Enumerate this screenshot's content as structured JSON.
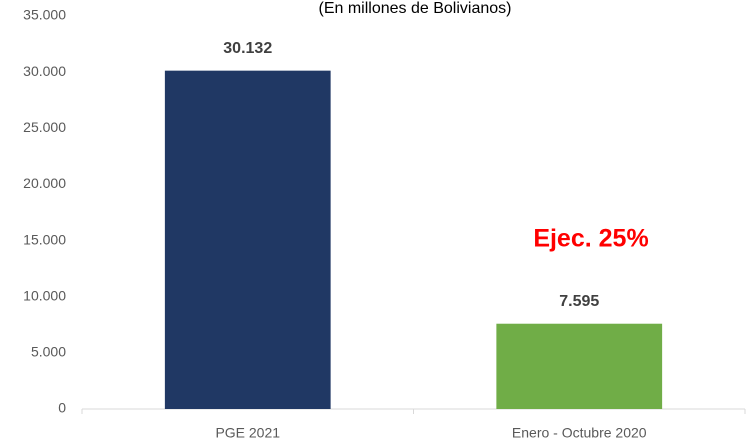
{
  "chart_data": {
    "type": "bar",
    "subtitle": "(En millones de Bolivianos)",
    "categories": [
      "PGE 2021",
      "Enero - Octubre 2020"
    ],
    "values": [
      30132,
      7595
    ],
    "value_labels": [
      "30.132",
      "7.595"
    ],
    "colors": [
      "#203864",
      "#70ad47"
    ],
    "annotation": "Ejec. 25%",
    "ylim": [
      0,
      35000
    ],
    "yticks": [
      0,
      {
        "value": 5000,
        "label": "5.000"
      },
      {
        "value": 10000,
        "label": "10.000"
      },
      {
        "value": 15000,
        "label": "15.000"
      },
      {
        "value": 20000,
        "label": "20.000"
      },
      {
        "value": 25000,
        "label": "25.000"
      },
      {
        "value": 30000,
        "label": "30.000"
      },
      {
        "value": 35000,
        "label": "35.000"
      }
    ],
    "grid": false
  }
}
